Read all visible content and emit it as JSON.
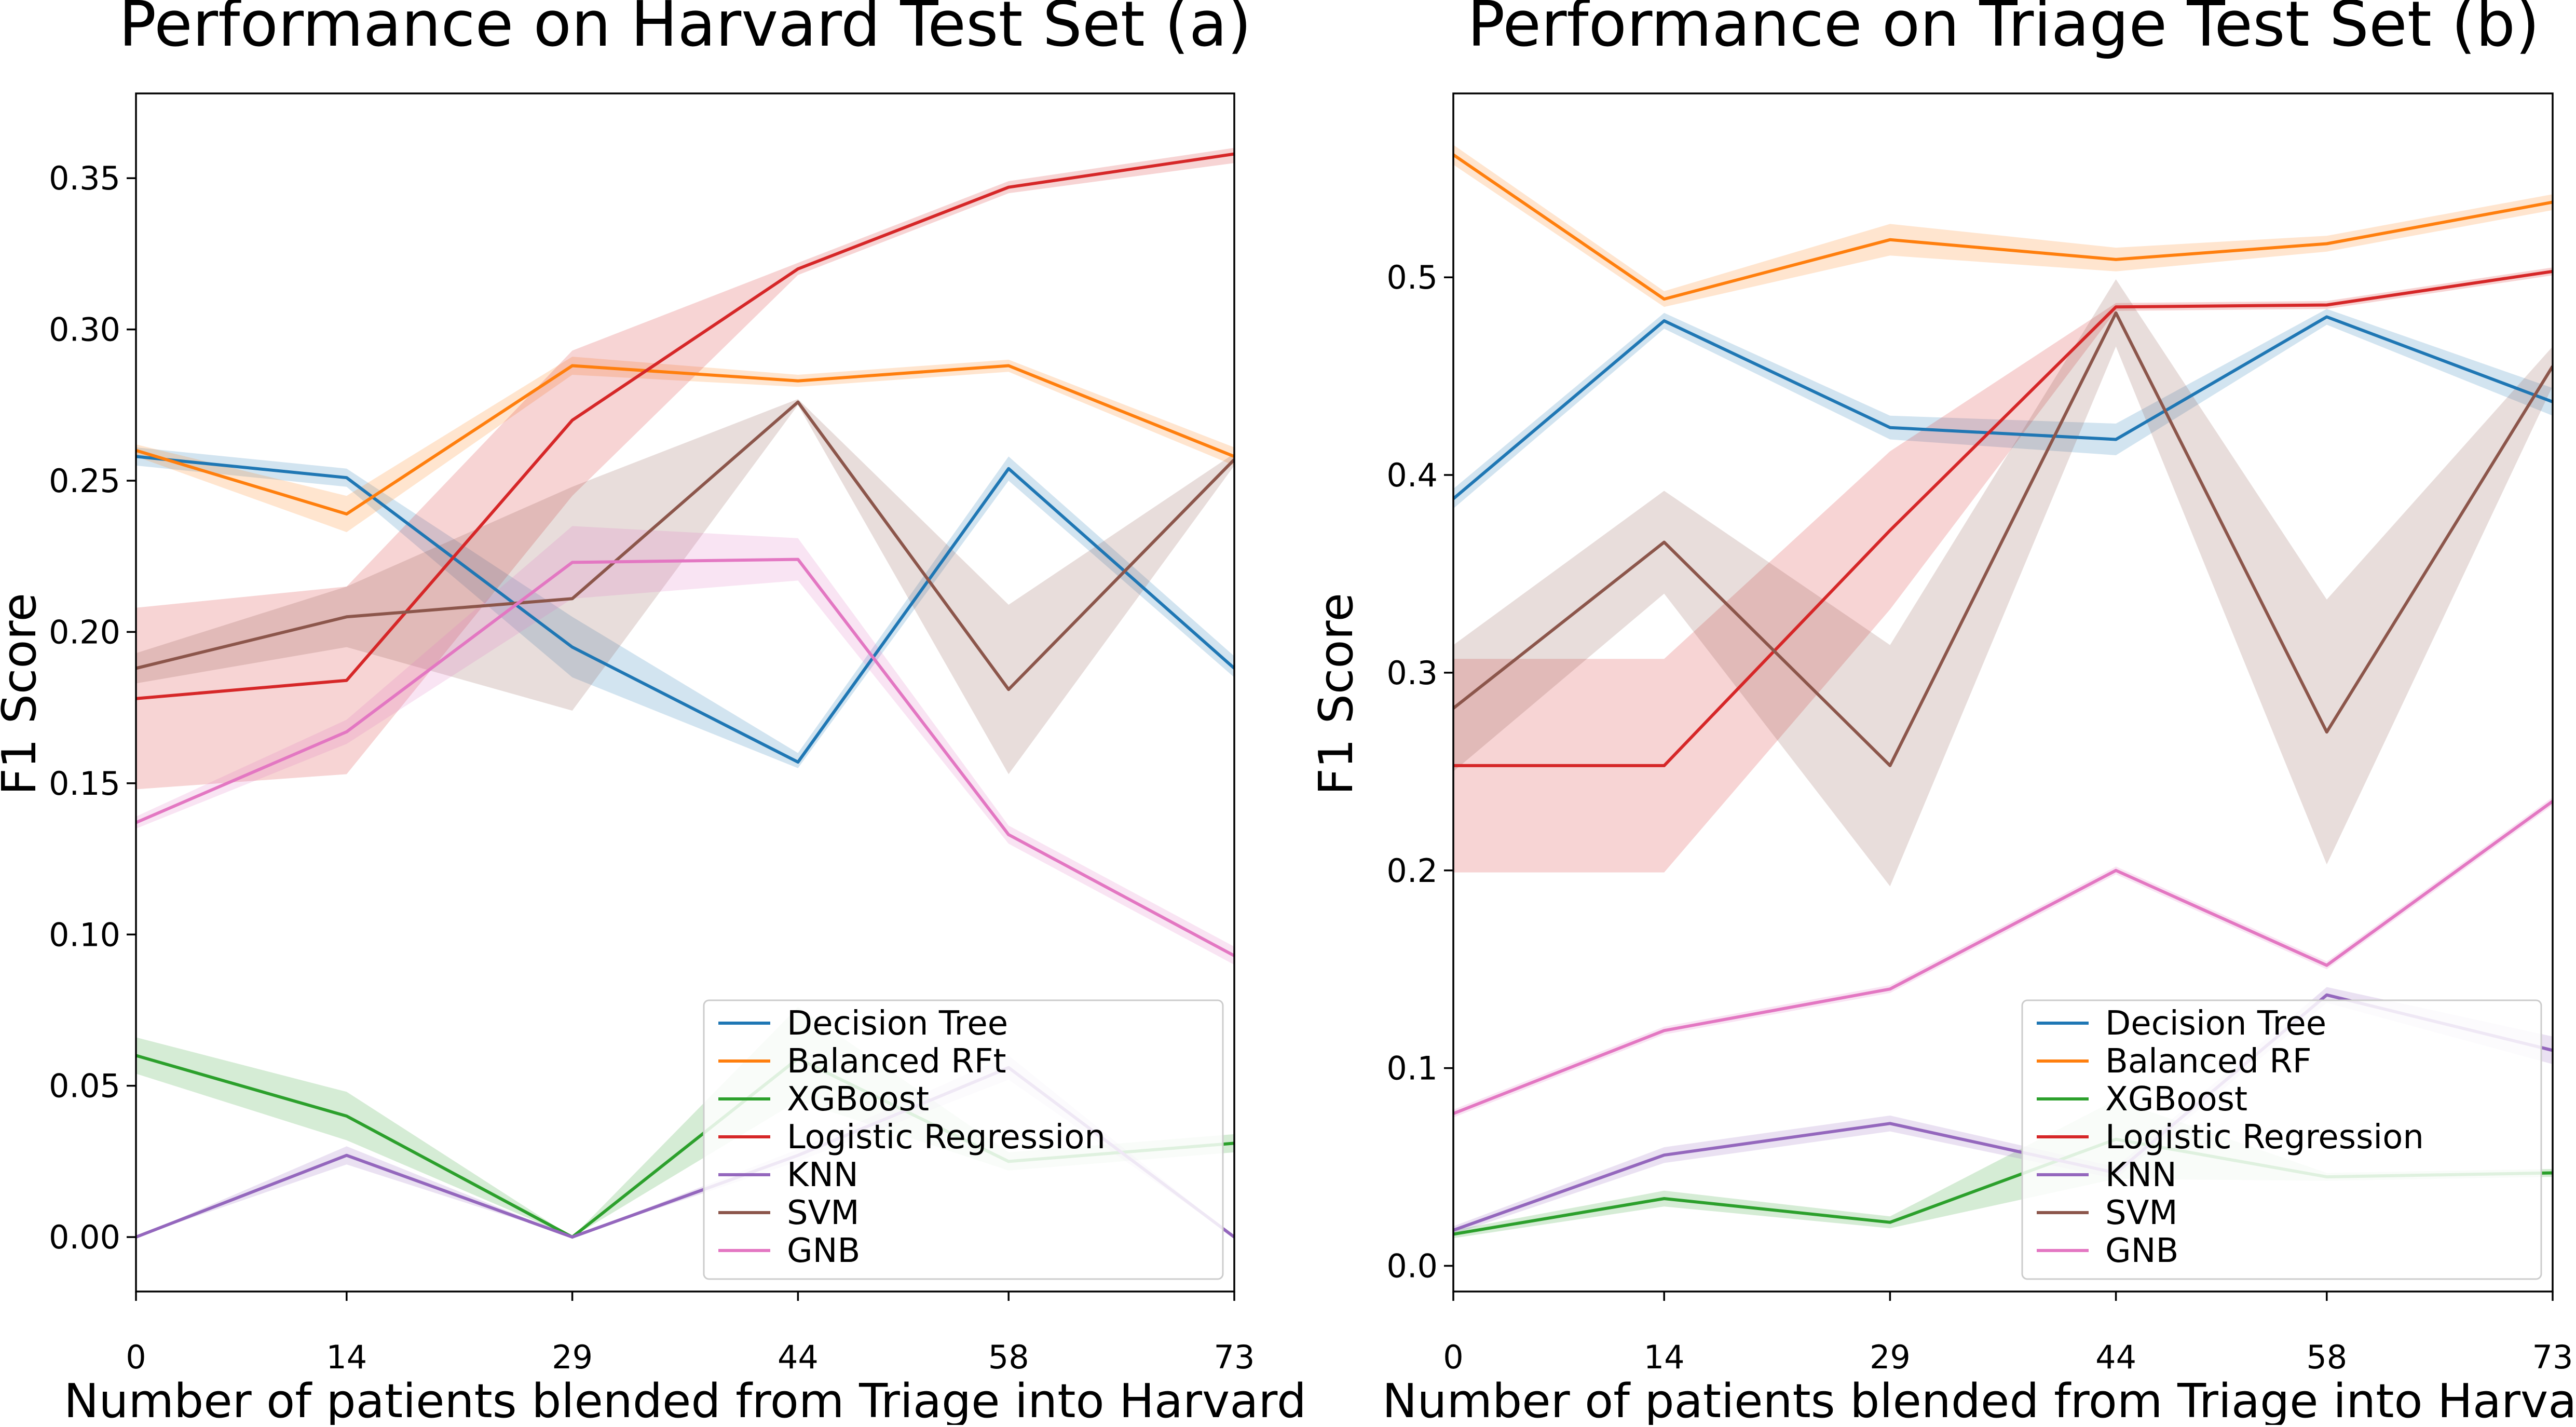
{
  "figure": {
    "panels": [
      "a",
      "b"
    ]
  },
  "chart_data": [
    {
      "type": "line",
      "title": "Performance on Harvard Test Set (a)",
      "xlabel": "Number of patients blended from Triage into Harvard",
      "ylabel": "F1 Score",
      "x": [
        0,
        14,
        29,
        44,
        58,
        73
      ],
      "x_tick_labels": [
        "0",
        "14",
        "29",
        "44",
        "58",
        "73"
      ],
      "xlim": [
        0,
        73
      ],
      "ylim": [
        -0.018,
        0.378
      ],
      "y_ticks": [
        0.0,
        0.05,
        0.1,
        0.15,
        0.2,
        0.25,
        0.3,
        0.35
      ],
      "y_tick_labels": [
        "0.00",
        "0.05",
        "0.10",
        "0.15",
        "0.20",
        "0.25",
        "0.30",
        "0.35"
      ],
      "grid": false,
      "legend_position": "lower-right",
      "series": [
        {
          "name": "Decision Tree",
          "color": "#1f77b4",
          "values": [
            0.258,
            0.251,
            0.195,
            0.157,
            0.254,
            0.188
          ],
          "lower": [
            0.255,
            0.248,
            0.185,
            0.155,
            0.25,
            0.185
          ],
          "upper": [
            0.261,
            0.254,
            0.205,
            0.16,
            0.258,
            0.192
          ]
        },
        {
          "name": "Balanced RFt",
          "color": "#ff7f0e",
          "values": [
            0.26,
            0.239,
            0.288,
            0.283,
            0.288,
            0.258
          ],
          "lower": [
            0.258,
            0.233,
            0.285,
            0.281,
            0.286,
            0.255
          ],
          "upper": [
            0.262,
            0.245,
            0.291,
            0.285,
            0.29,
            0.261
          ]
        },
        {
          "name": "XGBoost",
          "color": "#2ca02c",
          "values": [
            0.06,
            0.04,
            0.0,
            0.059,
            0.025,
            0.031
          ],
          "lower": [
            0.054,
            0.032,
            0.0,
            0.045,
            0.022,
            0.028
          ],
          "upper": [
            0.066,
            0.048,
            0.0,
            0.076,
            0.028,
            0.034
          ]
        },
        {
          "name": "Logistic Regression",
          "color": "#d62728",
          "values": [
            0.178,
            0.184,
            0.27,
            0.32,
            0.347,
            0.358
          ],
          "lower": [
            0.148,
            0.153,
            0.245,
            0.318,
            0.345,
            0.355
          ],
          "upper": [
            0.208,
            0.215,
            0.293,
            0.322,
            0.349,
            0.36
          ]
        },
        {
          "name": "KNN",
          "color": "#9467bd",
          "values": [
            0.0,
            0.027,
            0.0,
            0.027,
            0.056,
            0.0
          ],
          "lower": [
            0.0,
            0.024,
            0.0,
            0.025,
            0.052,
            0.0
          ],
          "upper": [
            0.0,
            0.03,
            0.0,
            0.029,
            0.06,
            0.0
          ]
        },
        {
          "name": "SVM",
          "color": "#8c564b",
          "values": [
            0.188,
            0.205,
            0.211,
            0.276,
            0.181,
            0.257
          ],
          "lower": [
            0.183,
            0.195,
            0.174,
            0.275,
            0.153,
            0.255
          ],
          "upper": [
            0.193,
            0.215,
            0.248,
            0.277,
            0.209,
            0.259
          ]
        },
        {
          "name": "GNB",
          "color": "#e377c2",
          "values": [
            0.137,
            0.167,
            0.223,
            0.224,
            0.133,
            0.093
          ],
          "lower": [
            0.135,
            0.163,
            0.211,
            0.217,
            0.13,
            0.09
          ],
          "upper": [
            0.139,
            0.171,
            0.235,
            0.231,
            0.136,
            0.096
          ]
        }
      ]
    },
    {
      "type": "line",
      "title": "Performance on Triage Test Set (b)",
      "xlabel": "Number of patients blended from Triage into Harvard",
      "ylabel": "F1 Score",
      "x": [
        0,
        14,
        29,
        44,
        58,
        73
      ],
      "x_tick_labels": [
        "0",
        "14",
        "29",
        "44",
        "58",
        "73"
      ],
      "xlim": [
        0,
        73
      ],
      "ylim": [
        -0.013,
        0.593
      ],
      "y_ticks": [
        0.0,
        0.1,
        0.2,
        0.3,
        0.4,
        0.5
      ],
      "y_tick_labels": [
        "0.0",
        "0.1",
        "0.2",
        "0.3",
        "0.4",
        "0.5"
      ],
      "grid": false,
      "legend_position": "lower-right",
      "series": [
        {
          "name": "Decision Tree",
          "color": "#1f77b4",
          "values": [
            0.388,
            0.478,
            0.424,
            0.418,
            0.48,
            0.437
          ],
          "lower": [
            0.383,
            0.474,
            0.418,
            0.41,
            0.476,
            0.43
          ],
          "upper": [
            0.393,
            0.482,
            0.43,
            0.426,
            0.484,
            0.444
          ]
        },
        {
          "name": "Balanced RF",
          "color": "#ff7f0e",
          "values": [
            0.562,
            0.489,
            0.519,
            0.509,
            0.517,
            0.538
          ],
          "lower": [
            0.557,
            0.485,
            0.511,
            0.503,
            0.513,
            0.534
          ],
          "upper": [
            0.567,
            0.493,
            0.527,
            0.515,
            0.521,
            0.542
          ]
        },
        {
          "name": "XGBoost",
          "color": "#2ca02c",
          "values": [
            0.016,
            0.034,
            0.022,
            0.064,
            0.045,
            0.047
          ],
          "lower": [
            0.014,
            0.03,
            0.019,
            0.044,
            0.043,
            0.045
          ],
          "upper": [
            0.018,
            0.038,
            0.025,
            0.084,
            0.047,
            0.049
          ]
        },
        {
          "name": "Logistic Regression",
          "color": "#d62728",
          "values": [
            0.253,
            0.253,
            0.372,
            0.485,
            0.486,
            0.503
          ],
          "lower": [
            0.199,
            0.199,
            0.332,
            0.483,
            0.484,
            0.501
          ],
          "upper": [
            0.307,
            0.307,
            0.412,
            0.487,
            0.488,
            0.505
          ]
        },
        {
          "name": "KNN",
          "color": "#9467bd",
          "values": [
            0.018,
            0.056,
            0.072,
            0.047,
            0.137,
            0.109
          ],
          "lower": [
            0.016,
            0.052,
            0.068,
            0.044,
            0.133,
            0.102
          ],
          "upper": [
            0.02,
            0.06,
            0.076,
            0.05,
            0.141,
            0.116
          ]
        },
        {
          "name": "SVM",
          "color": "#8c564b",
          "values": [
            0.282,
            0.366,
            0.253,
            0.482,
            0.27,
            0.455
          ],
          "lower": [
            0.25,
            0.34,
            0.192,
            0.465,
            0.203,
            0.445
          ],
          "upper": [
            0.314,
            0.392,
            0.314,
            0.499,
            0.337,
            0.465
          ]
        },
        {
          "name": "GNB",
          "color": "#e377c2",
          "values": [
            0.077,
            0.119,
            0.14,
            0.2,
            0.152,
            0.235
          ],
          "lower": [
            0.075,
            0.117,
            0.138,
            0.198,
            0.15,
            0.233
          ],
          "upper": [
            0.079,
            0.121,
            0.142,
            0.202,
            0.154,
            0.237
          ]
        }
      ]
    }
  ]
}
